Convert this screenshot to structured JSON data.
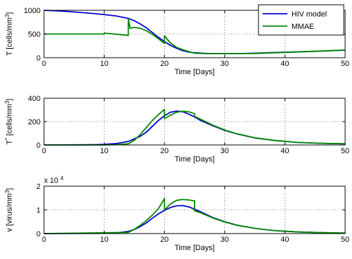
{
  "chart_data": [
    {
      "type": "line",
      "panel": "T",
      "xlabel": "Time [Days]",
      "ylabel": "T [cells/mm³]",
      "xlim": [
        0,
        50
      ],
      "ylim": [
        0,
        1000
      ],
      "xticks": [
        "0",
        "10",
        "20",
        "30",
        "40",
        "50"
      ],
      "yticks": [
        "0",
        "500",
        "1000"
      ],
      "grid": true,
      "legend_position": "top-right",
      "series": [
        {
          "name": "HIV model",
          "color": "#0000d0",
          "x": [
            0,
            2,
            4,
            6,
            8,
            10,
            12,
            14,
            15,
            16,
            17,
            18,
            19,
            20,
            21,
            22,
            23,
            24,
            25,
            27,
            30,
            33,
            36,
            40,
            45,
            50
          ],
          "y": [
            1000,
            990,
            975,
            955,
            935,
            910,
            880,
            830,
            780,
            710,
            630,
            530,
            430,
            340,
            260,
            200,
            150,
            120,
            105,
            90,
            85,
            88,
            100,
            115,
            135,
            160
          ]
        },
        {
          "name": "MMAE",
          "color": "#008800",
          "x": [
            0,
            10,
            10,
            14,
            14,
            14.3,
            15,
            16,
            17,
            18,
            19,
            20,
            20,
            21,
            22,
            23,
            24,
            25,
            27,
            30,
            35,
            40,
            45,
            50
          ],
          "y": [
            500,
            500,
            520,
            470,
            820,
            620,
            640,
            620,
            570,
            490,
            400,
            300,
            460,
            310,
            220,
            170,
            130,
            95,
            85,
            85,
            90,
            110,
            135,
            160
          ]
        }
      ]
    },
    {
      "type": "line",
      "panel": "Tstar",
      "xlabel": "Time [Days]",
      "ylabel": "T* [cells/mm³]",
      "xlim": [
        0,
        50
      ],
      "ylim": [
        0,
        400
      ],
      "xticks": [
        "0",
        "10",
        "20",
        "30",
        "40",
        "50"
      ],
      "yticks": [
        "0",
        "200",
        "400"
      ],
      "grid": true,
      "series": [
        {
          "name": "HIV model",
          "color": "#0000d0",
          "x": [
            0,
            8,
            10,
            12,
            14,
            16,
            17,
            18,
            19,
            20,
            21,
            22,
            23,
            24,
            25,
            26,
            28,
            30,
            32,
            35,
            38,
            42,
            46,
            50
          ],
          "y": [
            0,
            2,
            5,
            12,
            30,
            75,
            110,
            160,
            210,
            250,
            280,
            290,
            285,
            265,
            240,
            210,
            165,
            125,
            95,
            60,
            40,
            22,
            14,
            10
          ]
        },
        {
          "name": "MMAE",
          "color": "#008800",
          "x": [
            0,
            10,
            12,
            14,
            15,
            16,
            17,
            18,
            19,
            20,
            20,
            21,
            22,
            23,
            24,
            25,
            25,
            26,
            28,
            30,
            32,
            35,
            38,
            42,
            46,
            50
          ],
          "y": [
            0,
            0,
            2,
            10,
            40,
            90,
            150,
            210,
            260,
            305,
            225,
            255,
            280,
            288,
            285,
            268,
            245,
            220,
            170,
            128,
            96,
            62,
            40,
            22,
            14,
            10
          ]
        }
      ]
    },
    {
      "type": "line",
      "panel": "v",
      "xlabel": "Time [Days]",
      "ylabel": "v [virus/mm³]",
      "exponent_label": "x 10",
      "exponent_power": "4",
      "xlim": [
        0,
        50
      ],
      "ylim": [
        0,
        2
      ],
      "xticks": [
        "0",
        "10",
        "20",
        "30",
        "40",
        "50"
      ],
      "yticks": [
        "0",
        "1",
        "2"
      ],
      "grid": true,
      "series": [
        {
          "name": "HIV model",
          "color": "#0000d0",
          "x": [
            0,
            10,
            12,
            14,
            15,
            16,
            17,
            18,
            19,
            20,
            21,
            22,
            23,
            24,
            25,
            26,
            28,
            30,
            32,
            35,
            38,
            42,
            46,
            50
          ],
          "y": [
            0,
            0.01,
            0.03,
            0.09,
            0.17,
            0.3,
            0.45,
            0.65,
            0.83,
            0.98,
            1.1,
            1.17,
            1.18,
            1.13,
            1.03,
            0.92,
            0.68,
            0.5,
            0.36,
            0.22,
            0.13,
            0.07,
            0.04,
            0.02
          ]
        },
        {
          "name": "MMAE",
          "color": "#008800",
          "x": [
            0,
            14,
            15,
            16,
            17,
            18,
            19,
            20,
            20,
            21,
            22,
            23,
            24,
            25,
            25,
            26,
            28,
            30,
            32,
            35,
            38,
            42,
            46,
            50
          ],
          "y": [
            0,
            0.05,
            0.18,
            0.35,
            0.55,
            0.78,
            1.05,
            1.48,
            1.0,
            1.25,
            1.4,
            1.44,
            1.42,
            1.38,
            0.96,
            0.88,
            0.66,
            0.49,
            0.35,
            0.22,
            0.13,
            0.07,
            0.04,
            0.02
          ]
        }
      ]
    }
  ]
}
